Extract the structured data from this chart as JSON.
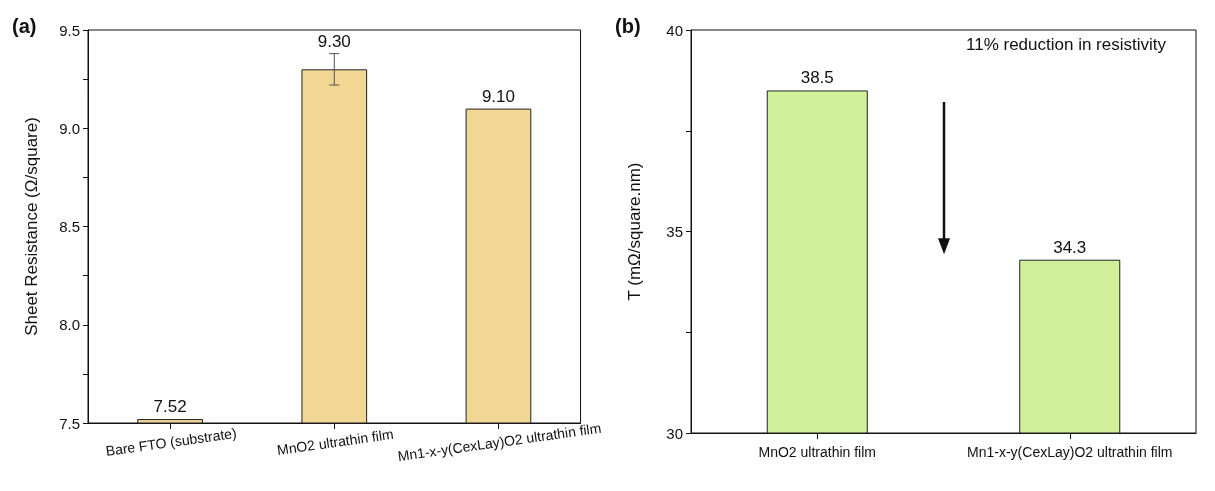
{
  "chart_data": [
    {
      "type": "bar",
      "title": "(a)",
      "ylabel": "Sheet Resistance (Ω/square)",
      "categories": [
        "Bare FTO (substrate)",
        "MnO2 ultrathin film",
        "Mn1-x-y(CexLay)O2 ultrathin film"
      ],
      "values": [
        7.52,
        9.3,
        9.1
      ],
      "value_labels": [
        "7.52",
        "9.30",
        "9.10"
      ],
      "errors": [
        null,
        [
          9.22,
          9.38
        ],
        null
      ],
      "color": "#f2d694",
      "ylim": [
        7.5,
        9.5
      ],
      "yticks": [
        7.5,
        {
          "value": 7.75,
          "label": null
        },
        {
          "value": 8,
          "label": "8.0"
        },
        {
          "value": 8.25,
          "label": null
        },
        8.5,
        {
          "value": 8.75,
          "label": null
        },
        {
          "value": 9,
          "label": "9.0"
        },
        {
          "value": 9.25,
          "label": null
        },
        9.5
      ],
      "grid": false
    },
    {
      "type": "bar",
      "title": "(b)",
      "ylabel": "T (mΩ/square.nm)",
      "categories": [
        "MnO2 ultrathin film",
        "Mn1-x-y(CexLay)O2 ultrathin film"
      ],
      "values": [
        38.5,
        34.3
      ],
      "data_labels": true,
      "color": "#d0f09a",
      "ylim": [
        30,
        40
      ],
      "yticks": [
        30,
        {
          "value": 32.5,
          "label": null
        },
        35,
        {
          "value": 37.5,
          "label": null
        },
        40
      ],
      "grid": false,
      "annotations": [
        "11% reduction in resistivity"
      ]
    }
  ]
}
